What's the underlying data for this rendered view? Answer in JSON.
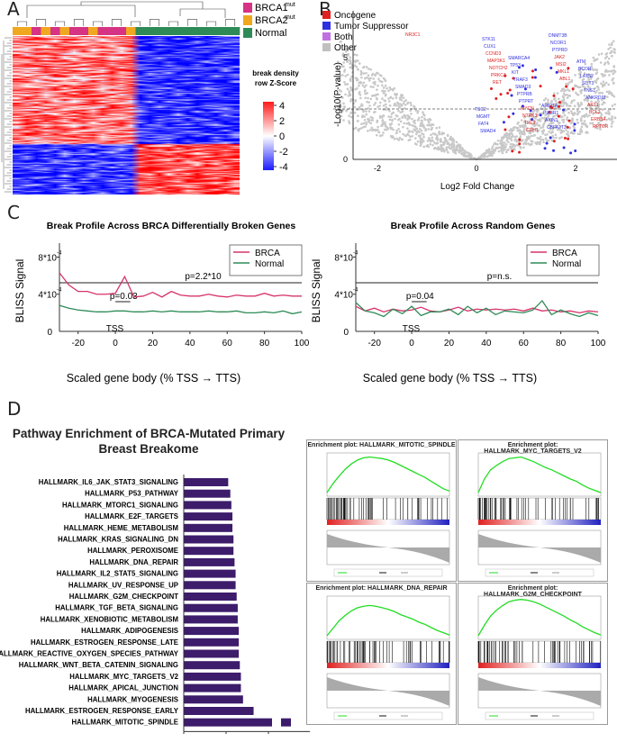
{
  "panels": {
    "A": "A",
    "B": "B",
    "C": "C",
    "D": "D"
  },
  "panelA": {
    "legend": [
      {
        "label": "BRCA1",
        "sup": "mut",
        "color": "#d63384"
      },
      {
        "label": "BRCA2",
        "sup": "mut",
        "color": "#f0a820"
      },
      {
        "label": "Normal",
        "sup": "",
        "color": "#2e8b57"
      }
    ],
    "scale_title_1": "break density",
    "scale_title_2": "row Z-Score",
    "scale_ticks": [
      "4",
      "2",
      "0",
      "-2",
      "-4"
    ],
    "column_groups": [
      "o",
      "o",
      "m",
      "o",
      "m",
      "o",
      "m",
      "m",
      "o",
      "m",
      "m",
      "m",
      "o",
      "g",
      "g",
      "g",
      "g",
      "g",
      "g",
      "g",
      "g",
      "g",
      "g",
      "g"
    ]
  },
  "panelB": {
    "legend": [
      {
        "label": "Oncogene",
        "color": "#e02020"
      },
      {
        "label": "Tumor Suppressor",
        "color": "#3030e0"
      },
      {
        "label": "Both",
        "color": "#c070e0"
      },
      {
        "label": "Other",
        "color": "#c0c0c0"
      }
    ],
    "xlabel": "Log2 Fold Change",
    "ylabel": "-Log10(P-value)",
    "xticks": [
      "-2",
      "0",
      "2"
    ],
    "yticks": [
      "5",
      "0"
    ],
    "genes_red": [
      "NR3C1",
      "RET",
      "CDH1",
      "ABL1",
      "RPTOR",
      "PRKCA",
      "TFE3",
      "MKL1",
      "ERBB4",
      "NOTCH2",
      "NTRK3",
      "MSI2",
      "BCL2",
      "MAP3K1",
      "MYCN",
      "JAK2",
      "AKT1",
      "CCND3"
    ],
    "genes_blue": [
      "PTPRT",
      "PTPRD",
      "ANKRD11",
      "CUX1",
      "PTPRB",
      "NCOR1",
      "TNS1",
      "STK11",
      "SMAD3",
      "DNMT3B",
      "SLIT3",
      "SMAD4",
      "TRAF3",
      "CBFA2T3",
      "LATS2",
      "FAT4",
      "KIT",
      "AXIN1",
      "BCOR",
      "MGMT",
      "TP53",
      "PIK3R1",
      "ATM",
      "TSC2",
      "SMARCA4",
      "ARID1A"
    ]
  },
  "panelC": {
    "left": {
      "title": "Break Profile Across BRCA Differentially Broken Genes",
      "legend": [
        "BRCA",
        "Normal"
      ],
      "pvalue_main": "p=2.2*10",
      "pvalue_exp": "-16",
      "pvalue_tss": "p=0.03"
    },
    "right": {
      "title": "Break Profile Across Random Genes",
      "legend": [
        "BRCA",
        "Normal"
      ],
      "pvalue_main": "p=n.s.",
      "pvalue_tss": "p=0.04"
    },
    "ylabel": "BLISS Signal",
    "ytick_top": "8*10",
    "ytick_mid": "4*10",
    "ytick_exp": "-4",
    "ytick_zero": "0",
    "tss_label": "TSS",
    "xlabel": "Scaled gene body (% TSS → TTS)",
    "xticks": [
      "-20",
      "0",
      "20",
      "40",
      "60",
      "80",
      "100"
    ],
    "colors": {
      "brca": "#d6336c",
      "normal": "#2e8b57"
    },
    "chart_data": [
      {
        "type": "line",
        "title": "Break Profile Across BRCA Differentially Broken Genes",
        "x": [
          -30,
          -25,
          -20,
          -15,
          -10,
          -5,
          0,
          5,
          10,
          15,
          20,
          25,
          30,
          35,
          40,
          45,
          50,
          55,
          60,
          65,
          70,
          75,
          80,
          85,
          90,
          95,
          100
        ],
        "series": [
          {
            "name": "BRCA",
            "values": [
              6.3,
              5.0,
              4.3,
              4.3,
              4.0,
              4.0,
              4.1,
              5.9,
              3.7,
              3.8,
              4.2,
              3.7,
              4.3,
              3.9,
              3.8,
              3.8,
              4.0,
              3.8,
              3.7,
              3.9,
              3.8,
              3.8,
              4.1,
              3.8,
              3.9,
              3.8,
              3.8
            ]
          },
          {
            "name": "Normal",
            "values": [
              2.8,
              2.5,
              2.3,
              2.2,
              2.1,
              2.1,
              2.2,
              2.2,
              2.1,
              2.1,
              2.2,
              2.1,
              2.2,
              2.1,
              2.1,
              2.1,
              2.2,
              2.1,
              2.1,
              2.2,
              2.0,
              2.0,
              2.1,
              2.0,
              2.2,
              1.9,
              2.1
            ]
          }
        ],
        "xlabel": "Scaled gene body (% TSS → TTS)",
        "ylabel": "BLISS Signal",
        "ylim": [
          0,
          9.5
        ]
      },
      {
        "type": "line",
        "title": "Break Profile Across Random Genes",
        "x": [
          -30,
          -25,
          -20,
          -15,
          -10,
          -5,
          0,
          5,
          10,
          15,
          20,
          25,
          30,
          35,
          40,
          45,
          50,
          55,
          60,
          65,
          70,
          75,
          80,
          85,
          90,
          95,
          100
        ],
        "series": [
          {
            "name": "BRCA",
            "values": [
              2.7,
              2.2,
              2.5,
              2.1,
              2.4,
              2.2,
              2.3,
              2.6,
              2.2,
              2.1,
              2.3,
              2.6,
              2.2,
              2.4,
              2.3,
              2.4,
              2.3,
              2.4,
              2.2,
              2.5,
              2.2,
              2.3,
              2.1,
              2.2,
              2.0,
              2.2,
              2.1
            ]
          },
          {
            "name": "Normal",
            "values": [
              3.1,
              2.2,
              2.0,
              1.6,
              2.4,
              1.9,
              2.7,
              1.7,
              2.1,
              2.1,
              2.4,
              1.8,
              2.7,
              2.0,
              2.5,
              1.8,
              2.2,
              2.1,
              2.0,
              2.3,
              3.3,
              1.8,
              2.3,
              1.9,
              1.6,
              2.0,
              1.7
            ]
          }
        ],
        "xlabel": "Scaled gene body (% TSS → TTS)",
        "ylabel": "BLISS Signal",
        "ylim": [
          0,
          9.5
        ]
      }
    ]
  },
  "panelD": {
    "title_line1": "Pathway Enrichment of BRCA-Mutated Primary",
    "title_line2": "Breast Breakome",
    "xlabel": "-log",
    "xlabel_sub": "10",
    "xlabel_rest": "(FDR)",
    "xticks": [
      "0",
      "2",
      "4"
    ],
    "bar_color": "#3d1c6b",
    "chart_data": {
      "type": "bar",
      "orientation": "horizontal",
      "categories": [
        "HALLMARK_IL6_JAK_STAT3_SIGNALING",
        "HALLMARK_P53_PATHWAY",
        "HALLMARK_MTORC1_SIGNALING",
        "HALLMARK_E2F_TARGETS",
        "HALLMARK_HEME_METABOLISM",
        "HALLMARK_KRAS_SIGNALING_DN",
        "HALLMARK_PEROXISOME",
        "HALLMARK_DNA_REPAIR",
        "HALLMARK_IL2_STAT5_SIGNALING",
        "HALLMARK_UV_RESPONSE_UP",
        "HALLMARK_G2M_CHECKPOINT",
        "HALLMARK_TGF_BETA_SIGNALING",
        "HALLMARK_XENOBIOTIC_METABOLISM",
        "HALLMARK_ADIPOGENESIS",
        "HALLMARK_ESTROGEN_RESPONSE_LATE",
        "HALLMARK_REACTIVE_OXYGEN_SPECIES_PATHWAY",
        "HALLMARK_WNT_BETA_CATENIN_SIGNALING",
        "HALLMARK_MYC_TARGETS_V2",
        "HALLMARK_APICAL_JUNCTION",
        "HALLMARK_MYOGENESIS",
        "HALLMARK_ESTROGEN_RESPONSE_EARLY",
        "HALLMARK_MITOTIC_SPINDLE"
      ],
      "values": [
        2.1,
        2.2,
        2.25,
        2.3,
        2.3,
        2.35,
        2.35,
        2.4,
        2.45,
        2.45,
        2.5,
        2.55,
        2.55,
        2.6,
        2.6,
        2.6,
        2.65,
        2.7,
        2.7,
        2.8,
        3.3,
        6.0
      ],
      "xlabel": "-log10(FDR)",
      "xlim": [
        0,
        6
      ]
    },
    "gsea_plots": [
      {
        "title": "Enrichment plot: HALLMARK_MITOTIC_SPINDLE",
        "es": [
          0,
          0.12,
          0.22,
          0.31,
          0.38,
          0.43,
          0.46,
          0.47,
          0.46,
          0.45,
          0.43,
          0.4,
          0.36,
          0.32,
          0.28,
          0.24,
          0.2,
          0.15,
          0.1,
          0.05,
          0.02
        ]
      },
      {
        "title": "Enrichment plot: HALLMARK_MYC_TARGETS_V2",
        "es": [
          0,
          0.18,
          0.3,
          0.36,
          0.41,
          0.45,
          0.46,
          0.47,
          0.44,
          0.41,
          0.37,
          0.33,
          0.3,
          0.26,
          0.22,
          0.18,
          0.15,
          0.1,
          0.06,
          0.03,
          0.0
        ]
      },
      {
        "title": "Enrichment plot: HALLMARK_DNA_REPAIR",
        "es": [
          0,
          0.1,
          0.2,
          0.27,
          0.33,
          0.37,
          0.39,
          0.4,
          0.39,
          0.37,
          0.35,
          0.32,
          0.28,
          0.25,
          0.22,
          0.18,
          0.15,
          0.11,
          0.07,
          0.04,
          0.01
        ]
      },
      {
        "title": "Enrichment plot: HALLMARK_G2M_CHECKPOINT",
        "es": [
          0,
          0.14,
          0.26,
          0.34,
          0.4,
          0.45,
          0.47,
          0.48,
          0.47,
          0.45,
          0.42,
          0.38,
          0.34,
          0.3,
          0.26,
          0.21,
          0.17,
          0.12,
          0.08,
          0.04,
          0.01
        ]
      }
    ]
  }
}
